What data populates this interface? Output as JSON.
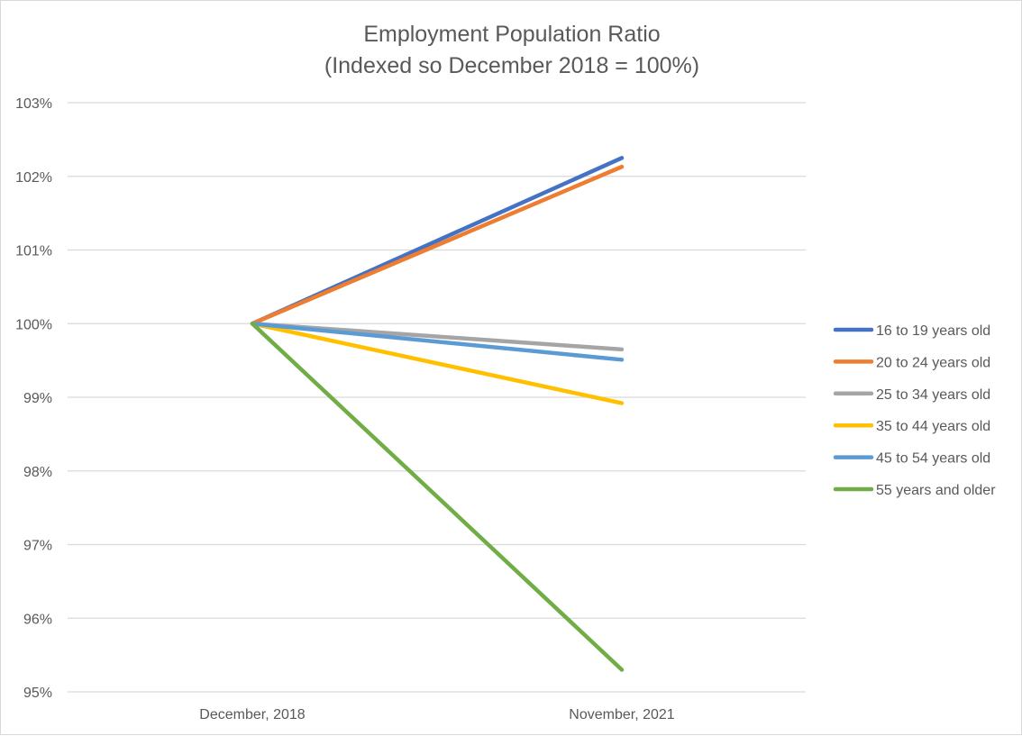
{
  "chart_data": {
    "type": "line",
    "title": "Employment Population Ratio",
    "subtitle": "(Indexed so December 2018 = 100%)",
    "categories": [
      "December, 2018",
      "November, 2021"
    ],
    "ylim": [
      95,
      103
    ],
    "yticks": [
      "95%",
      "96%",
      "97%",
      "98%",
      "99%",
      "100%",
      "101%",
      "102%",
      "103%"
    ],
    "grid": true,
    "legend_position": "right",
    "series": [
      {
        "name": "16 to 19 years old",
        "color": "#4472C4",
        "values": [
          100,
          102.25
        ]
      },
      {
        "name": "20 to 24 years old",
        "color": "#ED7D31",
        "values": [
          100,
          102.13
        ]
      },
      {
        "name": "25 to 34 years old",
        "color": "#A5A5A5",
        "values": [
          100,
          99.65
        ]
      },
      {
        "name": "35 to 44 years old",
        "color": "#FFC000",
        "values": [
          100,
          98.92
        ]
      },
      {
        "name": "45 to 54 years old",
        "color": "#5B9BD5",
        "values": [
          100,
          99.51
        ]
      },
      {
        "name": "55 years and older",
        "color": "#70AD47",
        "values": [
          100,
          95.3
        ]
      }
    ]
  }
}
